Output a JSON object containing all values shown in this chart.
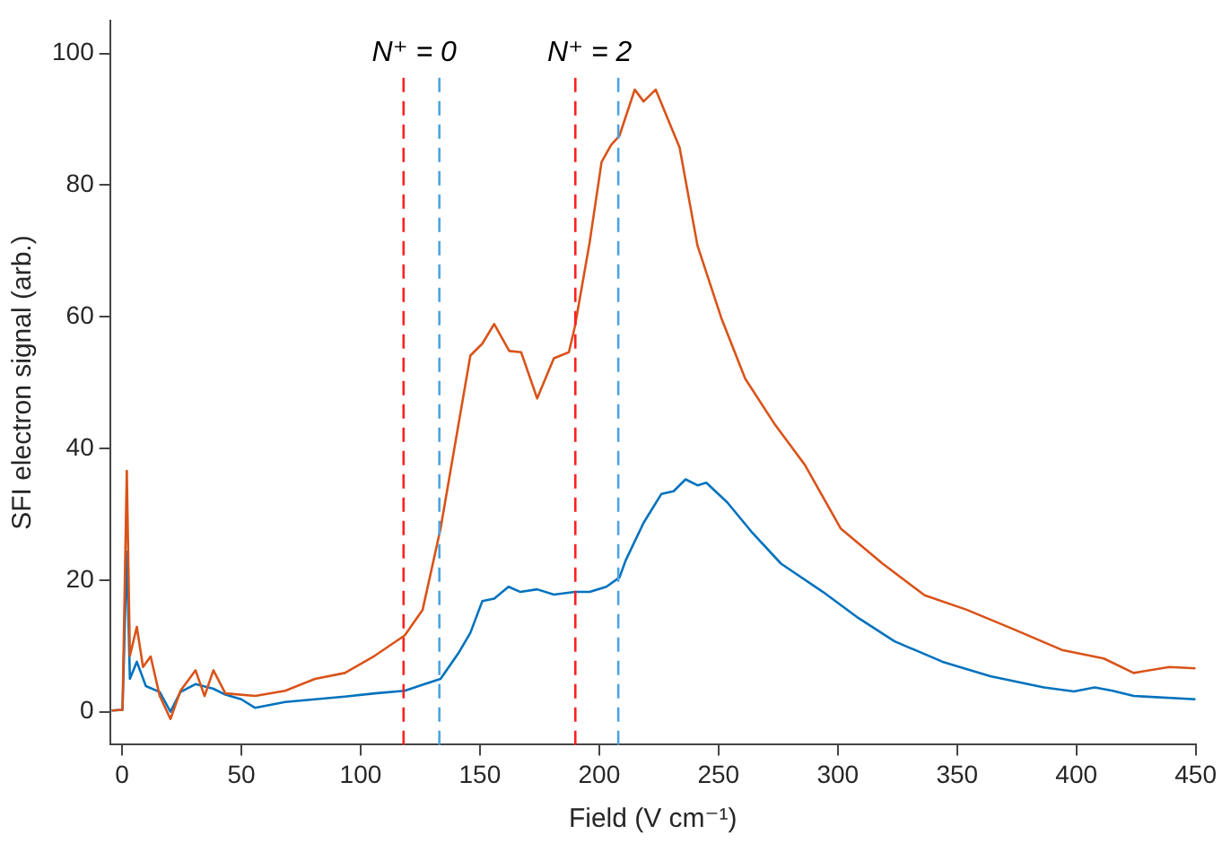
{
  "chart_data": {
    "type": "line",
    "xlabel": "Field (V cm⁻¹)",
    "ylabel": "SFI electron signal (arb.)",
    "xlim": [
      -5,
      450
    ],
    "xticks": [
      0,
      50,
      100,
      150,
      200,
      250,
      300,
      350,
      400,
      450
    ],
    "ylim": [
      -5,
      105
    ],
    "yticks": [
      0,
      20,
      40,
      60,
      80,
      100
    ],
    "grid": false,
    "legend": false,
    "marker": "none",
    "line_style": "solid",
    "series": [
      {
        "color": "#d95319",
        "x": [
          -4.3,
          0.2,
          2,
          3.3,
          6.2,
          8.8,
          12,
          15.8,
          20.3,
          24.5,
          30.8,
          34.6,
          38.3,
          43.3,
          55.8,
          68.4,
          80.9,
          93.4,
          105.9,
          118.5,
          126,
          133.5,
          141,
          146,
          151,
          156,
          162.3,
          167.3,
          174,
          181,
          187.3,
          189.8,
          196,
          201,
          205,
          208.5,
          214.9,
          218.6,
          223.7,
          233.7,
          241.2,
          251.2,
          261.2,
          273.7,
          286.2,
          301.3,
          318.8,
          336.4,
          354,
          373.9,
          393.9,
          411.5,
          424,
          439,
          450
        ],
        "values": [
          0.2,
          0.3,
          36.6,
          8.5,
          12.9,
          6.8,
          8.4,
          2.4,
          -1.1,
          3.2,
          6.3,
          2.4,
          6.3,
          2.8,
          2.4,
          3.2,
          5,
          5.9,
          8.5,
          11.6,
          15.5,
          27.8,
          43.6,
          54.1,
          55.9,
          58.9,
          54.8,
          54.6,
          47.6,
          53.7,
          54.6,
          58.5,
          71.3,
          83.5,
          86.1,
          87.5,
          94.5,
          92.7,
          94.5,
          85.7,
          70.8,
          59.8,
          50.6,
          43.6,
          37.5,
          27.8,
          22.5,
          17.7,
          15.5,
          12.5,
          9.4,
          8.1,
          5.9,
          6.8,
          6.6
        ]
      },
      {
        "color": "#0072bd",
        "x": [
          -4.3,
          0.2,
          2,
          3.3,
          6.2,
          10,
          15.8,
          20.3,
          24.5,
          30.8,
          38.3,
          43.3,
          50,
          55.8,
          68.4,
          80.9,
          93.4,
          106,
          118.5,
          126,
          133.5,
          141,
          146,
          151,
          156,
          162,
          167,
          174,
          181,
          189.8,
          196,
          203,
          208.5,
          211.1,
          218.6,
          226.1,
          231.2,
          236.2,
          241.2,
          244.9,
          253.7,
          263.7,
          276.2,
          293.8,
          308.8,
          323.8,
          343.9,
          363.9,
          386.4,
          399,
          407.7,
          415.2,
          424,
          450
        ],
        "values": [
          0.2,
          0.3,
          24.3,
          5,
          7.6,
          3.9,
          3,
          0,
          3,
          4.2,
          3.5,
          2.6,
          1.9,
          0.6,
          1.5,
          1.9,
          2.3,
          2.8,
          3.2,
          4.1,
          5,
          8.9,
          12,
          16.8,
          17.2,
          19,
          18.2,
          18.6,
          17.8,
          18.2,
          18.2,
          19,
          20.4,
          23,
          28.7,
          33.1,
          33.5,
          35.3,
          34.4,
          34.8,
          31.8,
          27.4,
          22.5,
          18.2,
          14.2,
          10.7,
          7.6,
          5.4,
          3.7,
          3.1,
          3.7,
          3.2,
          2.4,
          1.9
        ]
      }
    ],
    "ref_lines": [
      {
        "axis": "x",
        "value": 118,
        "color": "#ff2020",
        "line_style": "dashed"
      },
      {
        "axis": "x",
        "value": 133,
        "color": "#4da3e0",
        "line_style": "dashed"
      },
      {
        "axis": "x",
        "value": 190,
        "color": "#ff2020",
        "line_style": "dashed"
      },
      {
        "axis": "x",
        "value": 208,
        "color": "#4da3e0",
        "line_style": "dashed"
      }
    ],
    "annotations": [
      "N⁺ = 0",
      "N⁺ = 2"
    ]
  }
}
